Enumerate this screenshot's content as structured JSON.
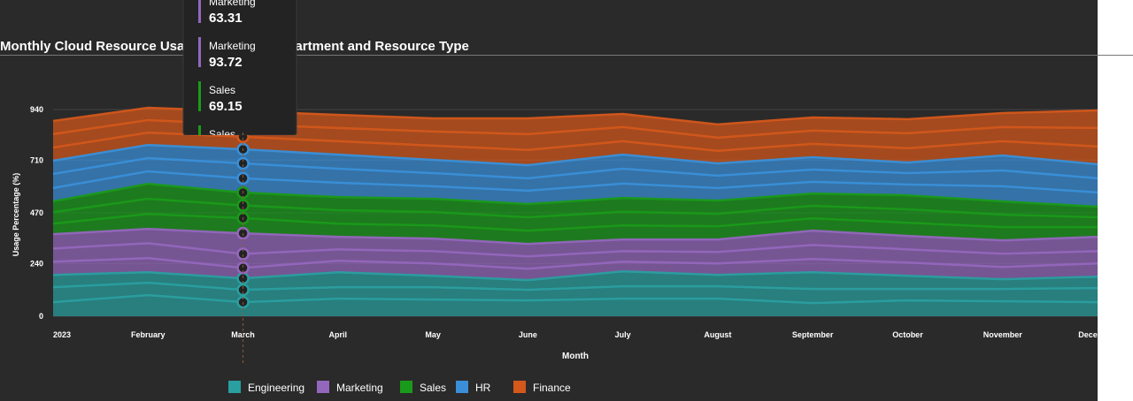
{
  "chart_data": {
    "type": "stacked-area",
    "title": "Monthly Cloud Resource Usage Trends by Department and Resource Type",
    "x_label": "Month",
    "y_label": "Usage Percentage (%)",
    "categories": [
      "2023",
      "February",
      "March",
      "April",
      "May",
      "June",
      "July",
      "August",
      "September",
      "October",
      "November",
      "December"
    ],
    "ylim": [
      0,
      940
    ],
    "yticks": [
      0,
      240,
      470,
      710,
      940
    ],
    "grid": true,
    "series": [
      {
        "name": "Engineering",
        "color": "#2a9fa0",
        "values": [
          64,
          96,
          64,
          80,
          76,
          72,
          80,
          80,
          60,
          72,
          68,
          64
        ]
      },
      {
        "name": "Engineering",
        "color": "#2a9fa0",
        "values": [
          68,
          56,
          56,
          52,
          56,
          48,
          56,
          56,
          64,
          52,
          56,
          64
        ]
      },
      {
        "name": "Engineering",
        "color": "#2a9fa0",
        "values": [
          56,
          48,
          52,
          68,
          52,
          44,
          68,
          52,
          76,
          60,
          44,
          52
        ]
      },
      {
        "name": "Marketing",
        "color": "#9467bd",
        "values": [
          60,
          64,
          48,
          52,
          56,
          52,
          44,
          52,
          60,
          60,
          56,
          60
        ]
      },
      {
        "name": "Marketing",
        "color": "#9467bd",
        "values": [
          60,
          68,
          63.31,
          52,
          56,
          56,
          48,
          52,
          64,
          60,
          60,
          56
        ]
      },
      {
        "name": "Marketing",
        "color": "#9467bd",
        "values": [
          65,
          65,
          93.72,
          57,
          57,
          57,
          53,
          57,
          65,
          61,
          61,
          65
        ]
      },
      {
        "name": "Sales",
        "color": "#1a9a1a",
        "values": [
          48,
          68,
          69.15,
          60,
          60,
          60,
          64,
          60,
          56,
          60,
          60,
          44
        ]
      },
      {
        "name": "Sales",
        "color": "#1a9a1a",
        "values": [
          52,
          69,
          58,
          61,
          61,
          61,
          62,
          57,
          57,
          61,
          57,
          45
        ]
      },
      {
        "name": "Sales",
        "color": "#1a9a1a",
        "values": [
          49,
          68,
          58,
          60,
          60,
          60,
          63,
          60,
          56,
          64,
          60,
          48
        ]
      },
      {
        "name": "HR",
        "color": "#3a8fd8",
        "values": [
          61,
          57,
          65,
          65,
          57,
          61,
          65,
          57,
          53,
          49,
          69,
          65
        ]
      },
      {
        "name": "HR",
        "color": "#3a8fd8",
        "values": [
          64,
          60,
          68,
          64,
          60,
          56,
          68,
          56,
          56,
          52,
          72,
          64
        ]
      },
      {
        "name": "HR",
        "color": "#3a8fd8",
        "values": [
          60,
          60,
          64,
          64,
          60,
          60,
          64,
          56,
          56,
          48,
          68,
          64
        ]
      },
      {
        "name": "Finance",
        "color": "#d4571b",
        "values": [
          60,
          56,
          57,
          61,
          65,
          69,
          61,
          57,
          61,
          65,
          65,
          81
        ]
      },
      {
        "name": "Finance",
        "color": "#d4571b",
        "values": [
          61,
          57,
          56,
          60,
          64,
          72,
          64,
          60,
          60,
          68,
          64,
          84
        ]
      },
      {
        "name": "Finance",
        "color": "#d4571b",
        "values": [
          60,
          56,
          60,
          60,
          60,
          72,
          60,
          60,
          60,
          64,
          64,
          80
        ]
      }
    ]
  }
}
